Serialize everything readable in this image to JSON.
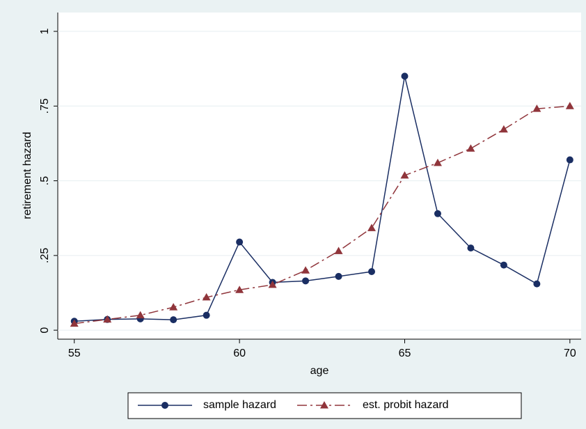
{
  "chart_data": {
    "type": "line",
    "x_label": "age",
    "y_label": "retirement hazard",
    "x": [
      55,
      56,
      57,
      58,
      59,
      60,
      61,
      62,
      63,
      64,
      65,
      66,
      67,
      68,
      69,
      70
    ],
    "series": [
      {
        "name": "sample hazard",
        "color": "#1a2e63",
        "marker": "circle",
        "dash": "solid",
        "values": [
          0.03,
          0.036,
          0.038,
          0.035,
          0.05,
          0.295,
          0.16,
          0.165,
          0.18,
          0.196,
          0.85,
          0.39,
          0.275,
          0.218,
          0.155,
          0.57
        ]
      },
      {
        "name": "est. probit hazard",
        "color": "#90353b",
        "marker": "triangle",
        "dash": "longdash",
        "values": [
          0.022,
          0.036,
          0.05,
          0.077,
          0.11,
          0.135,
          0.152,
          0.2,
          0.265,
          0.342,
          0.518,
          0.56,
          0.608,
          0.672,
          0.741,
          0.75
        ]
      }
    ],
    "xlim": [
      54.5,
      70.34
    ],
    "ylim": [
      -0.03,
      1.063
    ],
    "xticks": [
      55,
      60,
      65,
      70
    ],
    "yticks": [
      0,
      {
        "value": 0.25,
        "label": ".25"
      },
      {
        "value": 0.5,
        "label": ".5"
      },
      {
        "value": 0.75,
        "label": ".75"
      },
      1
    ],
    "grid": true,
    "legend": "bottom"
  }
}
